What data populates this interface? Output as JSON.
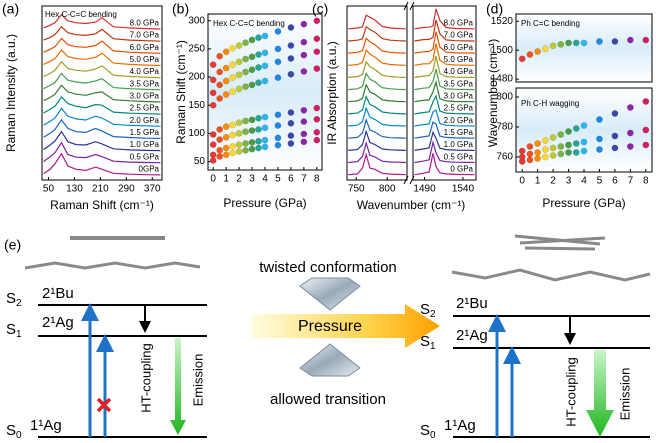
{
  "chart_data": [
    {
      "type": "line",
      "label": "(a)",
      "annotation": "Hex C-C=C bending",
      "ylabel": "Raman Intensity (a.u.)",
      "xlabel": "Raman Shift (cm⁻¹)",
      "x": [
        35,
        55,
        70,
        90,
        110,
        135,
        165,
        195,
        215,
        250,
        300,
        350,
        395
      ],
      "xlim": [
        30,
        400
      ],
      "xticks": [
        50,
        130,
        210,
        290,
        370
      ],
      "ylim": [
        0,
        1.2
      ],
      "series": [
        {
          "name": "0GPa",
          "color": "#b0178c",
          "values": [
            0.1,
            0.3,
            0.55,
            1.0,
            0.45,
            0.3,
            0.25,
            0.4,
            0.3,
            0.12,
            0.08,
            0.06,
            0.05
          ]
        },
        {
          "name": "0.5 GPa",
          "color": "#7b1fa2",
          "values": [
            0.1,
            0.32,
            0.5,
            0.95,
            0.42,
            0.3,
            0.28,
            0.42,
            0.32,
            0.12,
            0.08,
            0.06,
            0.05
          ]
        },
        {
          "name": "1.0 GPa",
          "color": "#283593",
          "values": [
            0.1,
            0.3,
            0.48,
            0.9,
            0.45,
            0.32,
            0.3,
            0.45,
            0.35,
            0.13,
            0.08,
            0.06,
            0.05
          ]
        },
        {
          "name": "1.5 GPa",
          "color": "#1565c0",
          "values": [
            0.1,
            0.28,
            0.45,
            0.88,
            0.5,
            0.35,
            0.32,
            0.5,
            0.38,
            0.13,
            0.09,
            0.06,
            0.05
          ]
        },
        {
          "name": "2.0 GPa",
          "color": "#0288d1",
          "values": [
            0.1,
            0.27,
            0.42,
            0.85,
            0.5,
            0.38,
            0.33,
            0.5,
            0.42,
            0.14,
            0.09,
            0.07,
            0.05
          ]
        },
        {
          "name": "2.5 GPa",
          "color": "#00897b",
          "values": [
            0.1,
            0.26,
            0.4,
            0.82,
            0.52,
            0.4,
            0.34,
            0.48,
            0.45,
            0.14,
            0.09,
            0.07,
            0.05
          ]
        },
        {
          "name": "3.0 GPa",
          "color": "#2e7d32",
          "values": [
            0.1,
            0.25,
            0.4,
            0.8,
            0.5,
            0.4,
            0.35,
            0.46,
            0.5,
            0.15,
            0.1,
            0.07,
            0.05
          ]
        },
        {
          "name": "3.5 GPa",
          "color": "#43a047",
          "values": [
            0.1,
            0.25,
            0.38,
            0.78,
            0.48,
            0.4,
            0.35,
            0.45,
            0.55,
            0.15,
            0.1,
            0.07,
            0.05
          ]
        },
        {
          "name": "4.0 GPa",
          "color": "#9e9d24",
          "values": [
            0.1,
            0.24,
            0.38,
            0.76,
            0.46,
            0.38,
            0.34,
            0.44,
            0.58,
            0.16,
            0.1,
            0.07,
            0.05
          ]
        },
        {
          "name": "5.0 GPa",
          "color": "#ef6c00",
          "values": [
            0.1,
            0.24,
            0.36,
            0.74,
            0.45,
            0.36,
            0.33,
            0.42,
            0.6,
            0.16,
            0.1,
            0.07,
            0.05
          ]
        },
        {
          "name": "6.0 GPa",
          "color": "#e65100",
          "values": [
            0.1,
            0.23,
            0.35,
            0.72,
            0.44,
            0.35,
            0.32,
            0.4,
            0.6,
            0.16,
            0.1,
            0.07,
            0.05
          ]
        },
        {
          "name": "7.0 GPa",
          "color": "#bf360c",
          "values": [
            0.1,
            0.22,
            0.35,
            0.7,
            0.43,
            0.34,
            0.31,
            0.38,
            0.58,
            0.16,
            0.1,
            0.07,
            0.05
          ]
        },
        {
          "name": "8.0 GPa",
          "color": "#d32f2f",
          "values": [
            0.1,
            0.22,
            0.34,
            0.7,
            0.42,
            0.33,
            0.3,
            0.36,
            0.56,
            0.15,
            0.1,
            0.07,
            0.05
          ]
        }
      ]
    },
    {
      "type": "scatter",
      "label": "(b)",
      "annotation": "Hex C-C=C bending",
      "ylabel": "Raman Shift (cm⁻¹)",
      "xlabel": "Pressure (GPa)",
      "x": [
        0,
        0.5,
        1,
        1.5,
        2,
        2.5,
        3,
        3.5,
        4,
        5,
        6,
        7,
        8
      ],
      "xlim": [
        -0.4,
        8.4
      ],
      "xticks": [
        0,
        1,
        2,
        3,
        4,
        5,
        6,
        7,
        8
      ],
      "ylim": [
        35,
        312
      ],
      "yticks": [
        50,
        100,
        150,
        200,
        250,
        300
      ],
      "point_colors": [
        "#e53935",
        "#f4511e",
        "#fb8c00",
        "#fdd835",
        "#c0ca33",
        "#7cb342",
        "#43a047",
        "#26a69a",
        "#29b6f6",
        "#1e88e5",
        "#3949ab",
        "#8e24aa",
        "#d81b60"
      ],
      "series": [
        {
          "values": [
            52,
            59,
            62,
            65,
            68,
            70,
            72,
            74,
            76,
            79,
            82,
            85,
            88
          ]
        },
        {
          "values": [
            62,
            70,
            74,
            77,
            80,
            82,
            84,
            86,
            88,
            92,
            96,
            99,
            102
          ]
        },
        {
          "values": [
            80,
            89,
            93,
            97,
            100,
            103,
            105,
            107,
            110,
            114,
            118,
            121,
            125
          ]
        },
        {
          "values": [
            98,
            107,
            112,
            115,
            119,
            122,
            124,
            127,
            129,
            133,
            137,
            141,
            145
          ]
        },
        {
          "values": [
            150,
            162,
            169,
            174,
            179,
            183,
            186,
            190,
            193,
            199,
            205,
            210,
            215
          ]
        },
        {
          "values": [
            172,
            186,
            193,
            199,
            204,
            209,
            213,
            217,
            220,
            227,
            233,
            239,
            245
          ]
        },
        {
          "values": [
            195,
            209,
            216,
            222,
            227,
            232,
            236,
            240,
            243,
            250,
            256,
            262,
            268
          ]
        },
        {
          "values": [
            222,
            237,
            245,
            251,
            256,
            261,
            266,
            270,
            273,
            281,
            288,
            294,
            300
          ]
        }
      ]
    },
    {
      "type": "line",
      "label": "(c)",
      "ylabel": "IR Absorption (a.u.)",
      "x": [
        737,
        752,
        760,
        766,
        772,
        780,
        792,
        805,
        818,
        830
      ],
      "xlim": [
        735,
        832
      ],
      "xticks": [
        750,
        800
      ],
      "ylim": [
        0,
        1
      ],
      "series": [
        {
          "color": "#b0178c",
          "values": [
            0.05,
            0.08,
            0.3,
            0.8,
            0.3,
            0.25,
            0.1,
            0.07,
            0.06,
            0.05
          ]
        },
        {
          "color": "#7b1fa2",
          "values": [
            0.05,
            0.08,
            0.28,
            0.78,
            0.32,
            0.26,
            0.1,
            0.07,
            0.06,
            0.05
          ]
        },
        {
          "color": "#283593",
          "values": [
            0.05,
            0.08,
            0.26,
            0.76,
            0.34,
            0.27,
            0.1,
            0.07,
            0.06,
            0.05
          ]
        },
        {
          "color": "#1565c0",
          "values": [
            0.05,
            0.08,
            0.24,
            0.74,
            0.36,
            0.28,
            0.11,
            0.07,
            0.06,
            0.05
          ]
        },
        {
          "color": "#0288d1",
          "values": [
            0.05,
            0.08,
            0.22,
            0.72,
            0.38,
            0.3,
            0.11,
            0.07,
            0.06,
            0.05
          ]
        },
        {
          "color": "#00897b",
          "values": [
            0.05,
            0.08,
            0.2,
            0.7,
            0.4,
            0.32,
            0.12,
            0.08,
            0.06,
            0.05
          ]
        },
        {
          "color": "#2e7d32",
          "values": [
            0.05,
            0.08,
            0.18,
            0.68,
            0.42,
            0.33,
            0.12,
            0.08,
            0.06,
            0.05
          ]
        },
        {
          "color": "#43a047",
          "values": [
            0.05,
            0.08,
            0.17,
            0.66,
            0.44,
            0.34,
            0.12,
            0.08,
            0.06,
            0.05
          ]
        },
        {
          "color": "#9e9d24",
          "values": [
            0.05,
            0.08,
            0.16,
            0.64,
            0.45,
            0.35,
            0.13,
            0.08,
            0.06,
            0.05
          ]
        },
        {
          "color": "#ef6c00",
          "values": [
            0.05,
            0.08,
            0.15,
            0.62,
            0.46,
            0.36,
            0.13,
            0.08,
            0.06,
            0.05
          ]
        },
        {
          "color": "#e65100",
          "values": [
            0.05,
            0.08,
            0.14,
            0.6,
            0.47,
            0.37,
            0.13,
            0.08,
            0.06,
            0.05
          ]
        },
        {
          "color": "#bf360c",
          "values": [
            0.05,
            0.08,
            0.13,
            0.58,
            0.48,
            0.38,
            0.14,
            0.08,
            0.06,
            0.05
          ]
        },
        {
          "color": "#d32f2f",
          "values": [
            0.05,
            0.08,
            0.12,
            0.56,
            0.48,
            0.38,
            0.14,
            0.08,
            0.06,
            0.05
          ]
        }
      ]
    },
    {
      "type": "line",
      "xlabel": "Wavenumber (cm⁻¹)",
      "x": [
        1477,
        1488,
        1496,
        1501,
        1505,
        1510,
        1518,
        1530,
        1555
      ],
      "xlim": [
        1475,
        1557
      ],
      "xticks": [
        1490,
        1540
      ],
      "ylim": [
        0,
        1
      ],
      "series": [
        {
          "name": "0 GPa",
          "color": "#b0178c",
          "values": [
            0.05,
            0.1,
            0.15,
            0.85,
            0.35,
            0.12,
            0.08,
            0.06,
            0.05
          ]
        },
        {
          "name": "0.5 GPa",
          "color": "#7b1fa2",
          "values": [
            0.05,
            0.1,
            0.15,
            0.8,
            0.42,
            0.12,
            0.08,
            0.06,
            0.05
          ]
        },
        {
          "name": "1.0 GPa",
          "color": "#283593",
          "values": [
            0.05,
            0.1,
            0.14,
            0.72,
            0.5,
            0.13,
            0.08,
            0.06,
            0.05
          ]
        },
        {
          "name": "1.5 GPa",
          "color": "#1565c0",
          "values": [
            0.05,
            0.1,
            0.14,
            0.65,
            0.58,
            0.13,
            0.08,
            0.06,
            0.05
          ]
        },
        {
          "name": "2.0 GPa",
          "color": "#0288d1",
          "values": [
            0.05,
            0.1,
            0.13,
            0.58,
            0.65,
            0.14,
            0.08,
            0.06,
            0.05
          ]
        },
        {
          "name": "2.5 GPa",
          "color": "#00897b",
          "values": [
            0.05,
            0.1,
            0.13,
            0.5,
            0.72,
            0.15,
            0.08,
            0.06,
            0.05
          ]
        },
        {
          "name": "3.0 GPa",
          "color": "#2e7d32",
          "values": [
            0.05,
            0.1,
            0.12,
            0.42,
            0.78,
            0.16,
            0.08,
            0.06,
            0.05
          ]
        },
        {
          "name": "3.5 GPa",
          "color": "#43a047",
          "values": [
            0.05,
            0.1,
            0.12,
            0.36,
            0.82,
            0.18,
            0.08,
            0.06,
            0.05
          ]
        },
        {
          "name": "4.0 GPa",
          "color": "#9e9d24",
          "values": [
            0.05,
            0.1,
            0.12,
            0.3,
            0.85,
            0.2,
            0.08,
            0.06,
            0.05
          ]
        },
        {
          "name": "5.0 GPa",
          "color": "#ef6c00",
          "values": [
            0.05,
            0.1,
            0.11,
            0.25,
            0.86,
            0.24,
            0.09,
            0.06,
            0.05
          ]
        },
        {
          "name": "6.0 GPa",
          "color": "#e65100",
          "values": [
            0.05,
            0.1,
            0.11,
            0.2,
            0.85,
            0.28,
            0.09,
            0.06,
            0.05
          ]
        },
        {
          "name": "7.0 GPa",
          "color": "#bf360c",
          "values": [
            0.05,
            0.1,
            0.11,
            0.18,
            0.83,
            0.32,
            0.09,
            0.06,
            0.05
          ]
        },
        {
          "name": "8.0 GPa",
          "color": "#d32f2f",
          "values": [
            0.05,
            0.1,
            0.11,
            0.16,
            0.8,
            0.36,
            0.1,
            0.06,
            0.05
          ]
        }
      ]
    },
    {
      "type": "scatter",
      "label": "(d)",
      "annotation": "Ph C=C bending",
      "ylabel": "Wavenumber (cm⁻¹)",
      "x": [
        0,
        0.5,
        1,
        1.5,
        2,
        2.5,
        3,
        3.5,
        4,
        5,
        6,
        7,
        8
      ],
      "xlim": [
        -0.4,
        8.4
      ],
      "ylim": [
        1478,
        1525
      ],
      "yticks": [
        1480,
        1500,
        1520
      ],
      "point_colors": [
        "#e53935",
        "#f4511e",
        "#fb8c00",
        "#fdd835",
        "#c0ca33",
        "#7cb342",
        "#43a047",
        "#26a69a",
        "#29b6f6",
        "#1e88e5",
        "#3949ab",
        "#8e24aa",
        "#d81b60"
      ],
      "series": [
        {
          "values": [
            1494,
            1497,
            1499,
            1501,
            1503,
            1504,
            1505,
            1505,
            1505,
            1506,
            1506,
            1507,
            1507
          ]
        }
      ]
    },
    {
      "type": "scatter",
      "annotation": "Ph C-H wagging",
      "xlabel": "Pressure (GPa)",
      "x": [
        0,
        0.5,
        1,
        1.5,
        2,
        2.5,
        3,
        3.5,
        4,
        5,
        6,
        7,
        8
      ],
      "xlim": [
        -0.4,
        8.4
      ],
      "xticks": [
        0,
        1,
        2,
        3,
        4,
        5,
        6,
        7,
        8
      ],
      "ylim": [
        750,
        806
      ],
      "yticks": [
        760,
        780,
        800
      ],
      "point_colors": [
        "#e53935",
        "#f4511e",
        "#fb8c00",
        "#fdd835",
        "#c0ca33",
        "#7cb342",
        "#43a047",
        "#26a69a",
        "#29b6f6",
        "#1e88e5",
        "#3949ab",
        "#8e24aa",
        "#d81b60"
      ],
      "series": [
        {
          "values": [
            757,
            758,
            759,
            760,
            761,
            762,
            763,
            763,
            764,
            765,
            766,
            767,
            768
          ]
        },
        {
          "values": [
            760,
            762,
            763,
            765,
            766,
            767,
            768,
            769,
            770,
            772,
            774,
            776,
            778
          ]
        },
        {
          "values": [
            764,
            767,
            769,
            771,
            773,
            775,
            777,
            779,
            781,
            785,
            789,
            793,
            797
          ]
        }
      ]
    }
  ],
  "diagram": {
    "label": "(e)",
    "left": {
      "levels": [
        {
          "state": "S",
          "sub": "2",
          "term": "2¹Bu"
        },
        {
          "state": "S",
          "sub": "1",
          "term": "2¹Ag"
        },
        {
          "state": "S",
          "sub": "0",
          "term": "1¹Ag"
        }
      ],
      "coupling": "HT-coupling",
      "emission": "Emission"
    },
    "center": {
      "top": "twisted conformation",
      "arrow": "Pressure",
      "bottom": "allowed transition"
    },
    "right": {
      "levels": [
        {
          "state": "S",
          "sub": "2",
          "term": "2¹Bu"
        },
        {
          "state": "S",
          "sub": "1",
          "term": "2¹Ag"
        },
        {
          "state": "S",
          "sub": "0",
          "term": "1¹Ag"
        }
      ],
      "coupling": "HT-coupling",
      "emission": "Emission"
    }
  }
}
